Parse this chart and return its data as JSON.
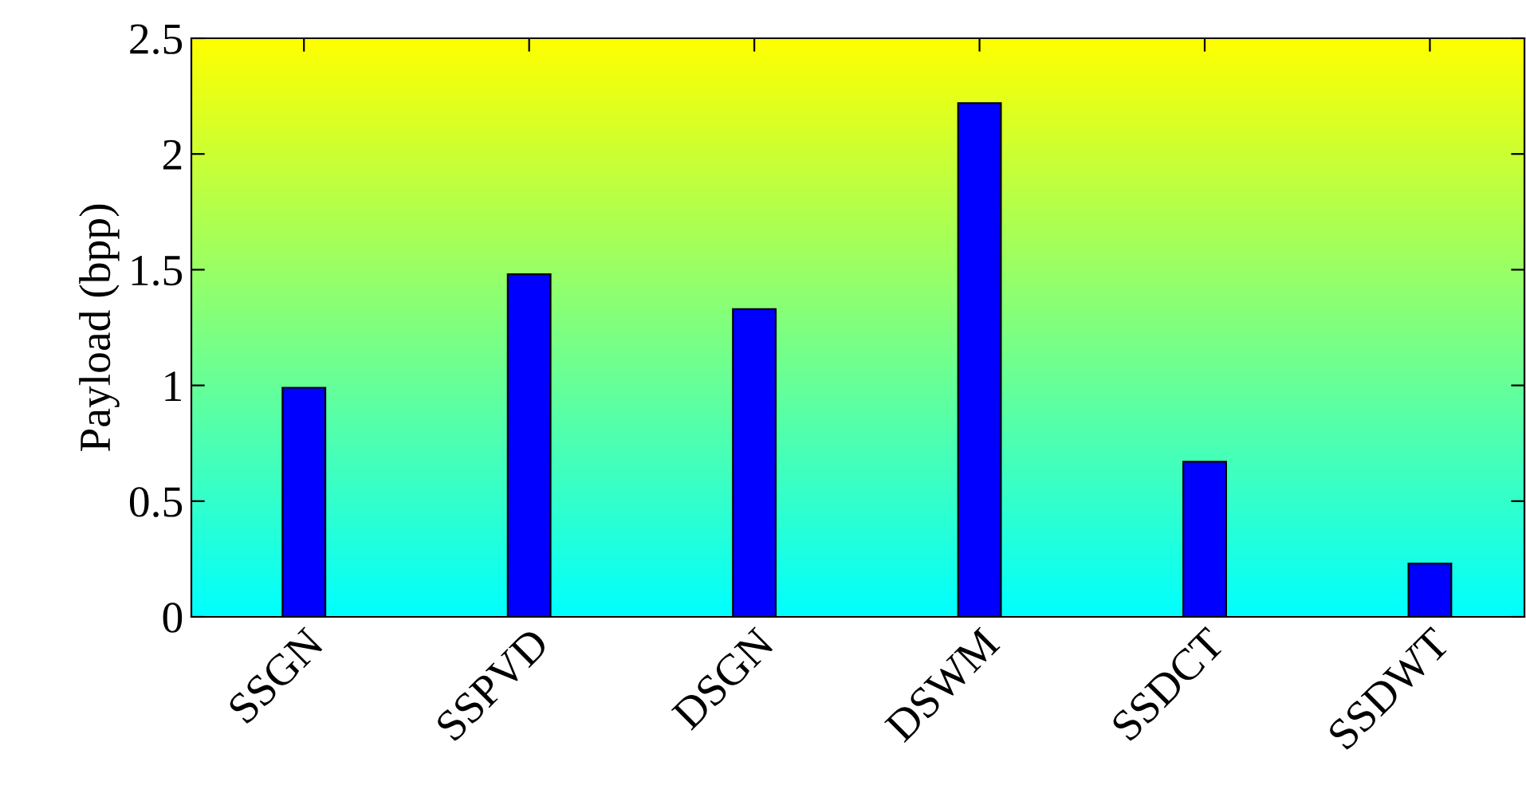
{
  "chart_data": {
    "type": "bar",
    "ylabel": "Payload (bpp)",
    "categories": [
      "SSGN",
      "SSPVD",
      "DSGN",
      "DSWM",
      "SSDCT",
      "SSDWT"
    ],
    "values": [
      0.99,
      1.48,
      1.33,
      2.22,
      0.67,
      0.23
    ],
    "color": "#0000ff",
    "ylim": [
      0,
      2.5
    ],
    "yticks": [
      0,
      0.5,
      1,
      1.5,
      2,
      2.5
    ],
    "grid": false,
    "legend": false
  }
}
